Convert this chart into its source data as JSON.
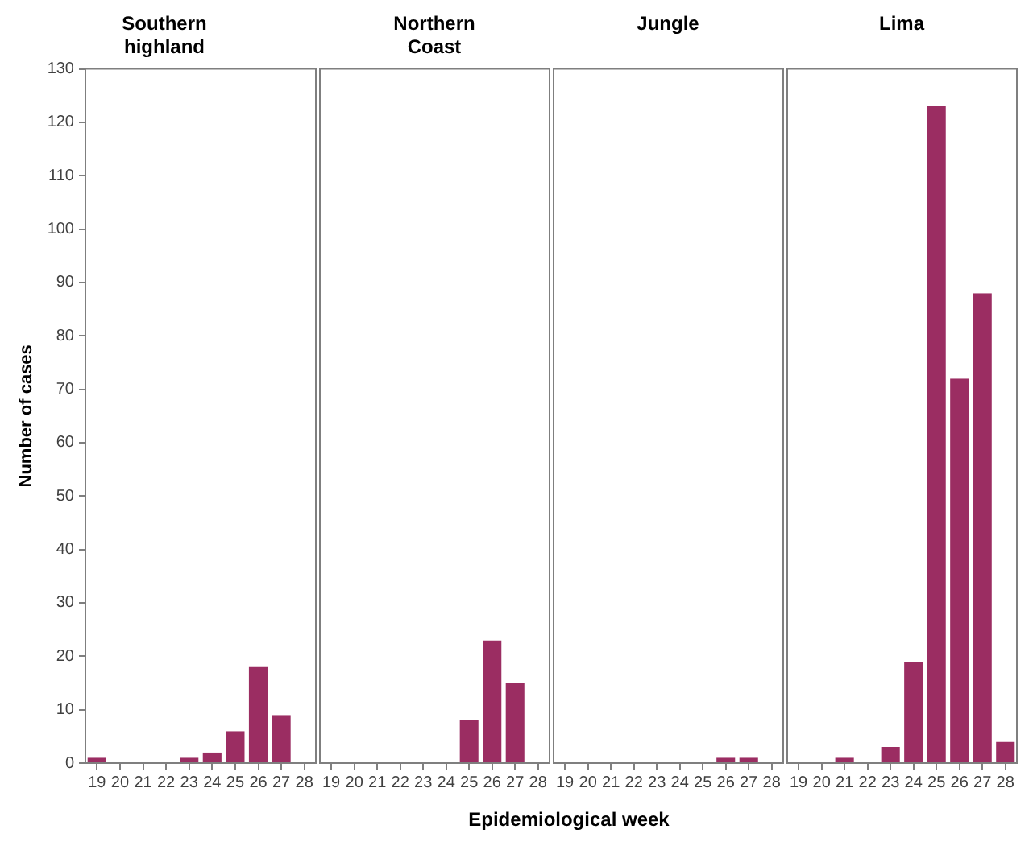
{
  "chart_data": [
    {
      "type": "bar",
      "title": "Southern highland",
      "ylabel": "Number of cases",
      "categories": [
        "19",
        "20",
        "21",
        "22",
        "23",
        "24",
        "25",
        "26",
        "27",
        "28"
      ],
      "values": [
        1,
        0,
        0,
        0,
        1,
        2,
        6,
        18,
        9,
        0
      ],
      "color": "#9b2d62",
      "ylim": [
        0,
        130
      ],
      "yticks": [
        0,
        10,
        20,
        30,
        40,
        50,
        60,
        70,
        80,
        90,
        100,
        110,
        120,
        130
      ],
      "grid": false,
      "legend": false
    },
    {
      "type": "bar",
      "title": "Northern Coast",
      "categories": [
        "19",
        "20",
        "21",
        "22",
        "23",
        "24",
        "25",
        "26",
        "27",
        "28"
      ],
      "values": [
        0,
        0,
        0,
        0,
        0,
        0,
        8,
        23,
        15,
        0
      ],
      "color": "#9b2d62",
      "ylim": [
        0,
        130
      ],
      "yticks": [
        0,
        10,
        20,
        30,
        40,
        50,
        60,
        70,
        80,
        90,
        100,
        110,
        120,
        130
      ],
      "tick_labels": "x",
      "grid": false,
      "legend": false
    },
    {
      "type": "bar",
      "title": "Jungle",
      "xlabel": "Epidemiological week",
      "categories": [
        "19",
        "20",
        "21",
        "22",
        "23",
        "24",
        "25",
        "26",
        "27",
        "28"
      ],
      "values": [
        0,
        0,
        0,
        0,
        0,
        0,
        0,
        1,
        1,
        0
      ],
      "color": "#9b2d62",
      "ylim": [
        0,
        130
      ],
      "yticks": [
        0,
        10,
        20,
        30,
        40,
        50,
        60,
        70,
        80,
        90,
        100,
        110,
        120,
        130
      ],
      "tick_labels": "x",
      "grid": false,
      "legend": false
    },
    {
      "type": "bar",
      "title": "Lima",
      "categories": [
        "19",
        "20",
        "21",
        "22",
        "23",
        "24",
        "25",
        "26",
        "27",
        "28"
      ],
      "values": [
        0,
        0,
        1,
        0,
        3,
        19,
        123,
        72,
        88,
        4
      ],
      "color": "#9b2d62",
      "ylim": [
        0,
        130
      ],
      "yticks": [
        0,
        10,
        20,
        30,
        40,
        50,
        60,
        70,
        80,
        90,
        100,
        110,
        120,
        130
      ],
      "tick_labels": "x",
      "grid": false,
      "legend": false
    }
  ]
}
